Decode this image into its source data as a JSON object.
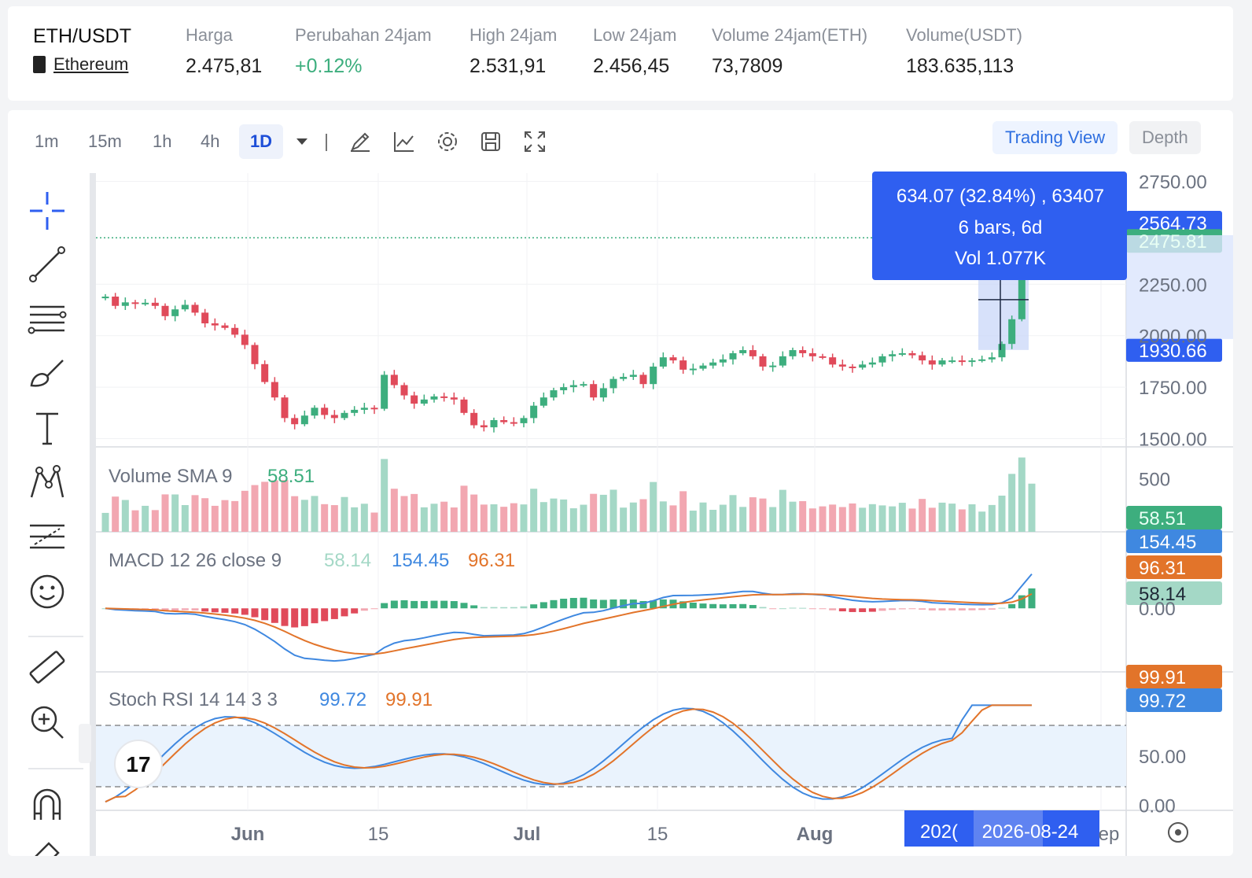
{
  "ticker": {
    "pair": "ETH/USDT",
    "name": "Ethereum",
    "stats": [
      {
        "label": "Harga",
        "value": "2.475,81",
        "color": "#222222"
      },
      {
        "label": "Perubahan 24jam",
        "value": "+0.12%",
        "color": "#3dae7e"
      },
      {
        "label": "High 24jam",
        "value": "2.531,91",
        "color": "#222222"
      },
      {
        "label": "Low 24jam",
        "value": "2.456,45",
        "color": "#222222"
      },
      {
        "label": "Volume 24jam(ETH)",
        "value": "73,7809",
        "color": "#222222"
      },
      {
        "label": "Volume(USDT)",
        "value": "183.635,113",
        "color": "#222222"
      }
    ]
  },
  "toolbar": {
    "intervals": [
      "1m",
      "15m",
      "1h",
      "4h",
      "1D"
    ],
    "active_interval": "1D",
    "icons": [
      "chevron-down-icon",
      "pencil-icon",
      "indicator-icon",
      "settings-gear-icon",
      "save-icon",
      "fullscreen-icon"
    ],
    "views": {
      "trading": "Trading View",
      "depth": "Depth"
    }
  },
  "left_tools": [
    "crosshair-icon",
    "trend-line-icon",
    "fib-lines-icon",
    "brush-icon",
    "text-icon",
    "pattern-icon",
    "projection-icon",
    "emoji-icon",
    "ruler-icon",
    "zoom-in-icon",
    "magnet-icon",
    "lock-icon"
  ],
  "colors": {
    "up": "#3dae7e",
    "down": "#e04a5a",
    "up_soft": "#a4d8c6",
    "down_soft": "#f2a7b1",
    "macd": "#3f88e0",
    "signal": "#e2742a",
    "accent": "#2f5ff0"
  },
  "chart_data": {
    "type": "candlestick",
    "symbol": "ETH/USDT",
    "interval": "1D",
    "price_axis": {
      "ticks": [
        "2750.00",
        "2250.00",
        "2000.00",
        "1750.00",
        "1500.00"
      ],
      "range": [
        1460,
        2790
      ]
    },
    "time_axis": {
      "labels": [
        "Jun",
        "15",
        "Jul",
        "15",
        "Aug",
        "ep"
      ],
      "highlight": "2026-08-24",
      "highlight_partial": "202("
    },
    "price_tags": {
      "measure_top": "2564.73",
      "last": "2475.81",
      "measure_bottom": "1930.66"
    },
    "last_price": 2475.81,
    "measure": {
      "line1": "634.07 (32.84%) , 63407",
      "line2": "6 bars, 6d",
      "line3": "Vol 1.077K"
    },
    "closes": [
      2190,
      2145,
      2162,
      2155,
      2160,
      2145,
      2095,
      2128,
      2150,
      2112,
      2060,
      2050,
      2038,
      2005,
      1955,
      1862,
      1775,
      1700,
      1600,
      1570,
      1612,
      1650,
      1615,
      1600,
      1625,
      1640,
      1650,
      1645,
      1810,
      1760,
      1710,
      1670,
      1690,
      1705,
      1700,
      1690,
      1625,
      1565,
      1555,
      1590,
      1580,
      1575,
      1600,
      1660,
      1700,
      1735,
      1750,
      1760,
      1765,
      1700,
      1745,
      1790,
      1800,
      1810,
      1765,
      1850,
      1895,
      1880,
      1835,
      1840,
      1855,
      1870,
      1885,
      1915,
      1930,
      1900,
      1850,
      1855,
      1900,
      1930,
      1915,
      1900,
      1895,
      1860,
      1850,
      1845,
      1860,
      1870,
      1900,
      1910,
      1915,
      1905,
      1880,
      1860,
      1880,
      1880,
      1875,
      1880,
      1885,
      1895,
      1960,
      2080,
      2380,
      2475
    ],
    "volume": {
      "label": "Volume SMA 9",
      "value": "58.51",
      "axis_ticks": [
        "500"
      ],
      "tag": "58.51"
    },
    "macd": {
      "label": "MACD 12 26 close 9",
      "hist_value": "58.14",
      "macd_value": "154.45",
      "signal_value": "96.31",
      "axis_ticks": [
        "0.00"
      ],
      "tags": [
        "154.45",
        "96.31",
        "58.14"
      ]
    },
    "stoch_rsi": {
      "label": "Stoch RSI 14 14 3 3",
      "k_value": "99.72",
      "d_value": "99.91",
      "axis_ticks": [
        "50.00",
        "0.00"
      ],
      "tags": [
        "99.91",
        "99.72"
      ],
      "bands": [
        80,
        20
      ]
    }
  }
}
